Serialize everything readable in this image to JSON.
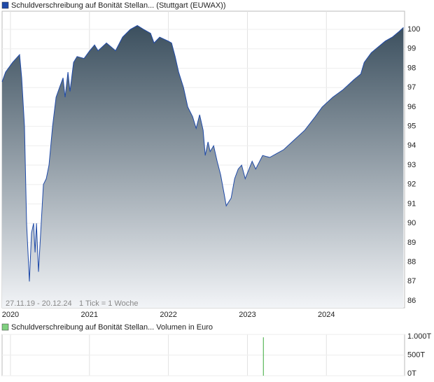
{
  "chart_data": [
    {
      "type": "line",
      "legend": "Schuldverschreibung auf Bonität Stellan... (Stuttgart (EUWAX))",
      "period": "27.11.19 - 20.12.24",
      "tick_note": "1 Tick = 1 Woche",
      "series": [
        {
          "name": "Schuldverschreibung auf Bonität Stellan... (Stuttgart (EUWAX))",
          "color": "#1f4aa8",
          "x": [
            2019.894,
            2019.938,
            2020.027,
            2020.116,
            2020.142,
            2020.178,
            2020.204,
            2020.24,
            2020.266,
            2020.293,
            2020.311,
            2020.329,
            2020.355,
            2020.382,
            2020.417,
            2020.453,
            2020.488,
            2020.533,
            2020.577,
            2020.621,
            2020.666,
            2020.692,
            2020.728,
            2020.754,
            2020.799,
            2020.843,
            2020.932,
            2021.003,
            2021.065,
            2021.109,
            2021.215,
            2021.331,
            2021.419,
            2021.517,
            2021.606,
            2021.686,
            2021.774,
            2021.818,
            2021.889,
            2021.996,
            2022.04,
            2022.085,
            2022.129,
            2022.191,
            2022.244,
            2022.306,
            2022.351,
            2022.395,
            2022.439,
            2022.466,
            2022.501,
            2022.528,
            2022.572,
            2022.617,
            2022.661,
            2022.706,
            2022.732,
            2022.794,
            2022.838,
            2022.883,
            2022.927,
            2022.972,
            2023.06,
            2023.105,
            2023.193,
            2023.282,
            2023.371,
            2023.459,
            2023.592,
            2023.725,
            2023.858,
            2023.947,
            2024.08,
            2024.213,
            2024.346,
            2024.435,
            2024.479,
            2024.568,
            2024.657,
            2024.745,
            2024.834,
            2024.923,
            2024.976
          ],
          "values": [
            97.3,
            97.8,
            98.3,
            98.7,
            97.5,
            95,
            90,
            87,
            89.5,
            90,
            88.5,
            90,
            87.5,
            89.5,
            92,
            92.3,
            93,
            95,
            96.5,
            97,
            97.5,
            96.5,
            97.8,
            96.8,
            98.3,
            98.6,
            98.5,
            98.9,
            99.2,
            98.9,
            99.3,
            98.9,
            99.6,
            100,
            100.2,
            100,
            99.8,
            99.3,
            99.6,
            99.4,
            99.3,
            98.6,
            97.8,
            97,
            96,
            95.5,
            94.9,
            95.6,
            94.8,
            93.5,
            94.2,
            93.7,
            94,
            93.2,
            92.5,
            91.5,
            90.9,
            91.3,
            92.3,
            92.8,
            93,
            92.3,
            93.2,
            92.8,
            93.5,
            93.4,
            93.6,
            93.8,
            94.3,
            94.8,
            95.5,
            96,
            96.5,
            96.9,
            97.4,
            97.7,
            98.3,
            98.8,
            99.1,
            99.4,
            99.6,
            99.9,
            100.1
          ]
        }
      ],
      "xlim": [
        2019.894,
        2024.99
      ],
      "xticks": [
        2020,
        2021,
        2022,
        2023,
        2024
      ],
      "ylim": [
        85.64,
        100.94
      ],
      "yticks": [
        86,
        87,
        88,
        89,
        90,
        91,
        92,
        93,
        94,
        95,
        96,
        97,
        98,
        99,
        100
      ],
      "grid": true
    },
    {
      "type": "bar",
      "legend": "Schuldverschreibung auf Bonität Stellan... Volumen in Euro",
      "series": [
        {
          "name": "Schuldverschreibung auf Bonität Stellan... Volumen in Euro",
          "color": "#3aaa3a",
          "x": [
            2023.202
          ],
          "values": [
            930
          ]
        }
      ],
      "xlim": [
        2019.894,
        2024.99
      ],
      "xticks": [
        2020,
        2021,
        2022,
        2023,
        2024
      ],
      "ylim": [
        0,
        1000
      ],
      "yticks": [
        {
          "value": 0,
          "label": "0T"
        },
        {
          "value": 500,
          "label": "500T"
        },
        {
          "value": 1000,
          "label": "1.000T"
        }
      ],
      "grid": true
    }
  ]
}
